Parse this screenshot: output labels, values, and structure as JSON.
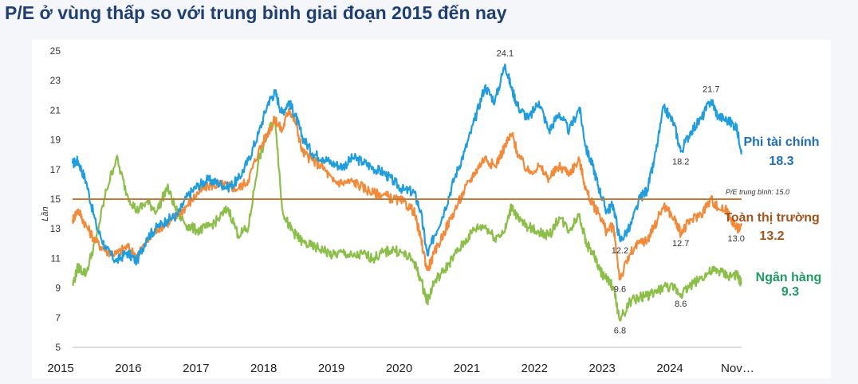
{
  "title": "P/E ở vùng thấp so với trung bình giai đoạn 2015 đến nay",
  "chart_data": {
    "type": "line",
    "ylabel": "Lần",
    "ylim": [
      5,
      25
    ],
    "yticks": [
      5,
      7,
      9,
      11,
      13,
      15,
      17,
      19,
      21,
      23,
      25
    ],
    "xticks": [
      "2015",
      "2016",
      "2017",
      "2018",
      "2019",
      "2020",
      "2021",
      "2022",
      "2023",
      "2024",
      "Nov…"
    ],
    "xlim": [
      2015.0,
      2024.9
    ],
    "grid": false,
    "reference_line": {
      "value": 15.0,
      "label": "P/E trung bình: 15.0",
      "color": "#c07a3a"
    },
    "series": [
      {
        "name": "Phi tài chính",
        "end_value": "18.3",
        "color": "#1f9ddc",
        "label_color": "#1f6fb8",
        "x": [
          2015.0,
          2015.08,
          2015.2,
          2015.35,
          2015.5,
          2015.65,
          2015.8,
          2015.95,
          2016.1,
          2016.25,
          2016.4,
          2016.55,
          2016.7,
          2016.85,
          2017.0,
          2017.15,
          2017.3,
          2017.45,
          2017.6,
          2017.75,
          2017.9,
          2018.0,
          2018.1,
          2018.2,
          2018.3,
          2018.4,
          2018.55,
          2018.7,
          2018.85,
          2019.0,
          2019.15,
          2019.3,
          2019.45,
          2019.6,
          2019.75,
          2019.9,
          2020.05,
          2020.15,
          2020.25,
          2020.35,
          2020.5,
          2020.65,
          2020.8,
          2020.95,
          2021.1,
          2021.25,
          2021.4,
          2021.5,
          2021.6,
          2021.75,
          2021.9,
          2022.05,
          2022.2,
          2022.35,
          2022.5,
          2022.6,
          2022.7,
          2022.8,
          2022.9,
          2023.0,
          2023.1,
          2023.25,
          2023.4,
          2023.5,
          2023.6,
          2023.75,
          2023.9,
          2024.0,
          2024.15,
          2024.3,
          2024.45,
          2024.55,
          2024.7,
          2024.82,
          2024.9
        ],
        "values": [
          17.4,
          17.6,
          16.2,
          13.2,
          11.6,
          10.8,
          11.4,
          10.8,
          12.4,
          13.1,
          13.6,
          13.9,
          15.2,
          15.9,
          16.3,
          16.1,
          15.8,
          16.3,
          17.6,
          19.4,
          21.6,
          22.2,
          20.8,
          21.6,
          20.6,
          19.2,
          18.1,
          17.8,
          17.4,
          17.2,
          17.8,
          17.5,
          17.1,
          16.8,
          16.2,
          15.6,
          15.5,
          14.2,
          11.2,
          12.5,
          14.2,
          16.4,
          18.2,
          20.3,
          22.6,
          21.6,
          24.1,
          22.4,
          21.2,
          20.4,
          21.6,
          19.6,
          20.8,
          19.6,
          21.2,
          18.4,
          17.2,
          15.6,
          14.2,
          14.6,
          12.2,
          13.1,
          15.1,
          15.6,
          17.4,
          21.2,
          20.1,
          18.2,
          19.6,
          20.4,
          21.7,
          20.6,
          20.3,
          19.9,
          18.3
        ]
      },
      {
        "name": "Toàn thị trường",
        "end_value": "13.2",
        "color": "#f28a3a",
        "label_color": "#a5541d",
        "x": [
          2015.0,
          2015.08,
          2015.2,
          2015.35,
          2015.5,
          2015.65,
          2015.8,
          2015.95,
          2016.1,
          2016.25,
          2016.4,
          2016.55,
          2016.7,
          2016.85,
          2017.0,
          2017.15,
          2017.3,
          2017.45,
          2017.6,
          2017.75,
          2017.9,
          2018.0,
          2018.1,
          2018.2,
          2018.3,
          2018.4,
          2018.55,
          2018.7,
          2018.85,
          2019.0,
          2019.15,
          2019.3,
          2019.45,
          2019.6,
          2019.75,
          2019.9,
          2020.05,
          2020.15,
          2020.25,
          2020.35,
          2020.5,
          2020.65,
          2020.8,
          2020.95,
          2021.1,
          2021.25,
          2021.4,
          2021.5,
          2021.6,
          2021.75,
          2021.9,
          2022.05,
          2022.2,
          2022.35,
          2022.5,
          2022.6,
          2022.7,
          2022.8,
          2022.9,
          2023.0,
          2023.1,
          2023.25,
          2023.4,
          2023.5,
          2023.6,
          2023.75,
          2023.9,
          2024.0,
          2024.15,
          2024.3,
          2024.45,
          2024.55,
          2024.7,
          2024.82,
          2024.9
        ],
        "values": [
          13.6,
          14.3,
          13.2,
          12.1,
          11.5,
          11.3,
          11.8,
          11.2,
          12.1,
          13.0,
          13.4,
          13.9,
          14.6,
          15.4,
          15.9,
          16.0,
          15.9,
          15.7,
          16.3,
          18.2,
          19.6,
          20.4,
          19.6,
          21.1,
          20.2,
          18.2,
          17.6,
          17.2,
          16.2,
          16.1,
          16.2,
          15.8,
          15.4,
          15.3,
          15.0,
          14.8,
          14.2,
          12.4,
          10.2,
          11.3,
          12.8,
          14.2,
          15.6,
          16.8,
          17.8,
          17.2,
          18.6,
          19.4,
          17.9,
          16.8,
          17.2,
          16.4,
          17.2,
          16.8,
          17.6,
          15.6,
          14.6,
          14.0,
          12.8,
          13.2,
          9.6,
          11.3,
          12.1,
          12.2,
          13.1,
          14.6,
          13.7,
          12.7,
          13.6,
          14.0,
          15.0,
          14.4,
          14.2,
          13.0,
          13.2
        ]
      },
      {
        "name": "Ngân hàng",
        "end_value": "9.3",
        "color": "#8cbf4a",
        "label_color": "#1f9a62",
        "x": [
          2015.0,
          2015.08,
          2015.2,
          2015.35,
          2015.5,
          2015.65,
          2015.8,
          2015.95,
          2016.1,
          2016.25,
          2016.4,
          2016.55,
          2016.7,
          2016.85,
          2017.0,
          2017.15,
          2017.3,
          2017.45,
          2017.6,
          2017.75,
          2017.9,
          2018.0,
          2018.1,
          2018.2,
          2018.3,
          2018.4,
          2018.55,
          2018.7,
          2018.85,
          2019.0,
          2019.15,
          2019.3,
          2019.45,
          2019.6,
          2019.75,
          2019.9,
          2020.05,
          2020.15,
          2020.25,
          2020.35,
          2020.5,
          2020.65,
          2020.8,
          2020.95,
          2021.1,
          2021.25,
          2021.4,
          2021.5,
          2021.6,
          2021.75,
          2021.9,
          2022.05,
          2022.2,
          2022.35,
          2022.5,
          2022.6,
          2022.7,
          2022.8,
          2022.9,
          2023.0,
          2023.1,
          2023.25,
          2023.4,
          2023.5,
          2023.6,
          2023.75,
          2023.9,
          2024.0,
          2024.15,
          2024.3,
          2024.45,
          2024.55,
          2024.7,
          2024.82,
          2024.9
        ],
        "values": [
          9.2,
          10.4,
          10.0,
          12.4,
          15.6,
          17.8,
          15.4,
          14.2,
          14.8,
          14.2,
          15.8,
          14.1,
          13.2,
          12.9,
          13.1,
          13.6,
          14.4,
          12.6,
          13.0,
          17.6,
          19.6,
          20.4,
          14.4,
          13.2,
          12.6,
          12.1,
          11.8,
          11.6,
          11.2,
          11.4,
          11.1,
          11.3,
          11.0,
          11.4,
          11.6,
          11.3,
          10.8,
          9.6,
          8.1,
          9.4,
          10.2,
          11.2,
          12.1,
          13.0,
          13.2,
          12.4,
          12.9,
          14.6,
          13.6,
          13.1,
          12.8,
          12.5,
          13.8,
          12.9,
          14.0,
          12.0,
          11.4,
          10.2,
          9.6,
          9.1,
          6.8,
          8.1,
          8.4,
          8.5,
          8.6,
          9.1,
          9.0,
          8.6,
          9.2,
          9.7,
          10.1,
          10.2,
          9.8,
          9.9,
          9.3
        ]
      }
    ],
    "annotations": [
      {
        "text": "24.1",
        "x": 2021.4,
        "y": 24.1,
        "pos": "above"
      },
      {
        "text": "21.7",
        "x": 2024.45,
        "y": 21.7,
        "pos": "above"
      },
      {
        "text": "18.2",
        "x": 2024.0,
        "y": 18.2,
        "pos": "below"
      },
      {
        "text": "12.2",
        "x": 2023.1,
        "y": 12.2,
        "pos": "below"
      },
      {
        "text": "12.7",
        "x": 2024.0,
        "y": 12.7,
        "pos": "below"
      },
      {
        "text": "13.0",
        "x": 2024.82,
        "y": 13.0,
        "pos": "below"
      },
      {
        "text": "9.6",
        "x": 2023.1,
        "y": 9.6,
        "pos": "below"
      },
      {
        "text": "8.6",
        "x": 2024.0,
        "y": 8.6,
        "pos": "below"
      },
      {
        "text": "6.8",
        "x": 2023.1,
        "y": 6.8,
        "pos": "below"
      }
    ]
  }
}
